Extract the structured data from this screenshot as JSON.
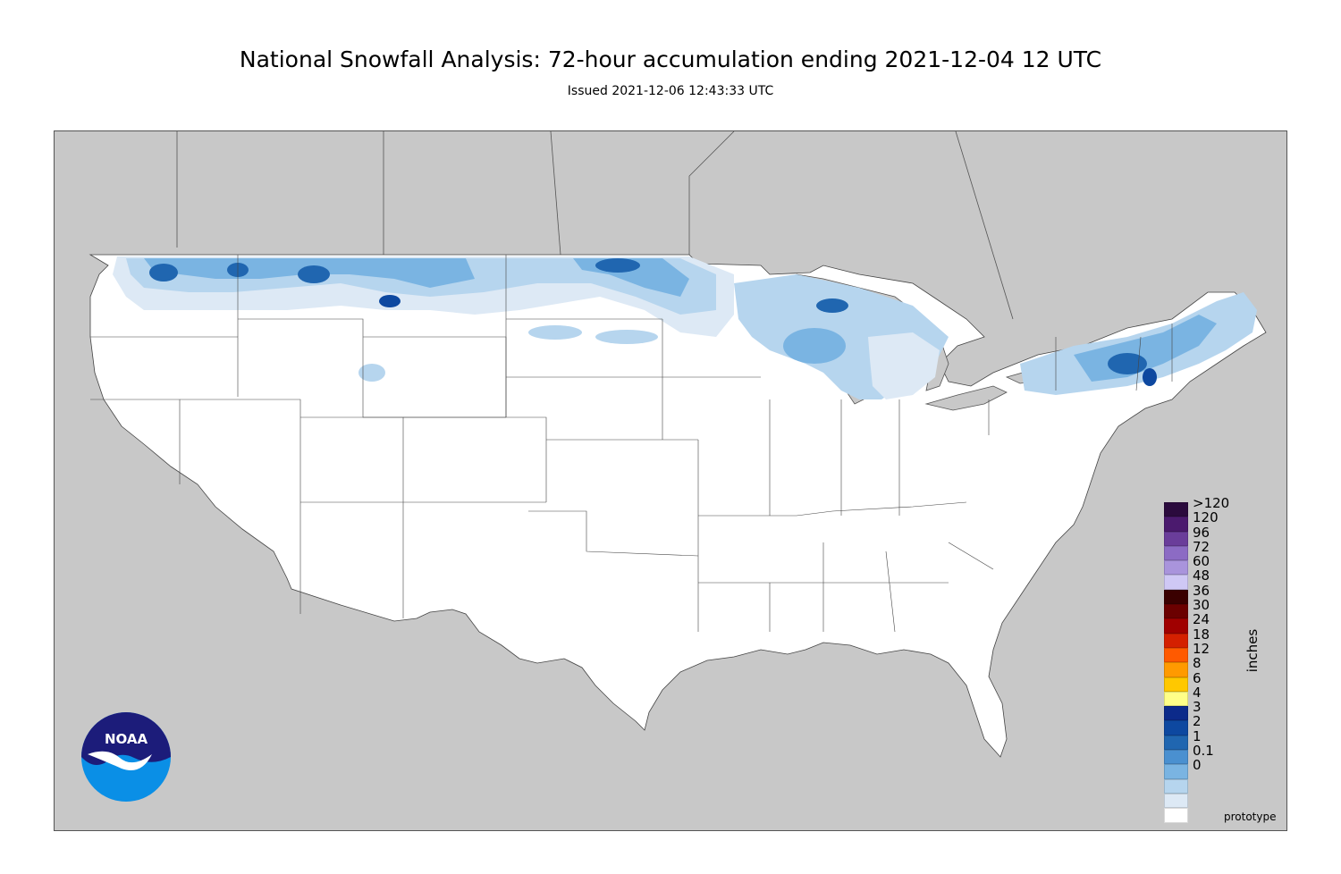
{
  "title": "National Snowfall Analysis: 72-hour accumulation ending 2021-12-04 12 UTC",
  "subtitle": "Issued 2021-12-06 12:43:33 UTC",
  "footer_note": "prototype",
  "logo_text": "NOAA",
  "legend": {
    "units": "inches",
    "items": [
      {
        "label": ">120",
        "color": "#2b0a3d"
      },
      {
        "label": "120",
        "color": "#4b1a6e"
      },
      {
        "label": "96",
        "color": "#6a3d9a"
      },
      {
        "label": "72",
        "color": "#8c6bc4"
      },
      {
        "label": "60",
        "color": "#a994dc"
      },
      {
        "label": "48",
        "color": "#cfc8f5"
      },
      {
        "label": "36",
        "color": "#3a0000"
      },
      {
        "label": "30",
        "color": "#6b0000"
      },
      {
        "label": "24",
        "color": "#a00000"
      },
      {
        "label": "18",
        "color": "#d42000"
      },
      {
        "label": "12",
        "color": "#ff5a00"
      },
      {
        "label": "8",
        "color": "#ff9a00"
      },
      {
        "label": "6",
        "color": "#ffc800"
      },
      {
        "label": "4",
        "color": "#ffff88"
      },
      {
        "label": "3",
        "color": "#0c2a8a"
      },
      {
        "label": "2",
        "color": "#0d48a0"
      },
      {
        "label": "1",
        "color": "#2066b0"
      },
      {
        "label": "0.1",
        "color": "#4a90d0"
      },
      {
        "label": "0",
        "color": "#7ab4e2"
      },
      {
        "label": "",
        "color": "#b6d5ee"
      },
      {
        "label": "",
        "color": "#dde9f5"
      },
      {
        "label": "",
        "color": "#ffffff"
      }
    ],
    "tick_labels": [
      ">120",
      "120",
      "96",
      "72",
      "60",
      "48",
      "36",
      "30",
      "24",
      "18",
      "12",
      "8",
      "6",
      "4",
      "3",
      "2",
      "1",
      "0.1",
      "0"
    ]
  },
  "colors": {
    "background": "#c8c8c8",
    "land": "#ffffff",
    "lakes": "#b4b4b4",
    "snow_light": "#dde9f5",
    "snow_mid": "#b6d5ee",
    "snow_1": "#7ab4e2",
    "snow_2": "#4a90d0",
    "snow_3": "#2066b0",
    "snow_4": "#0d48a0"
  }
}
